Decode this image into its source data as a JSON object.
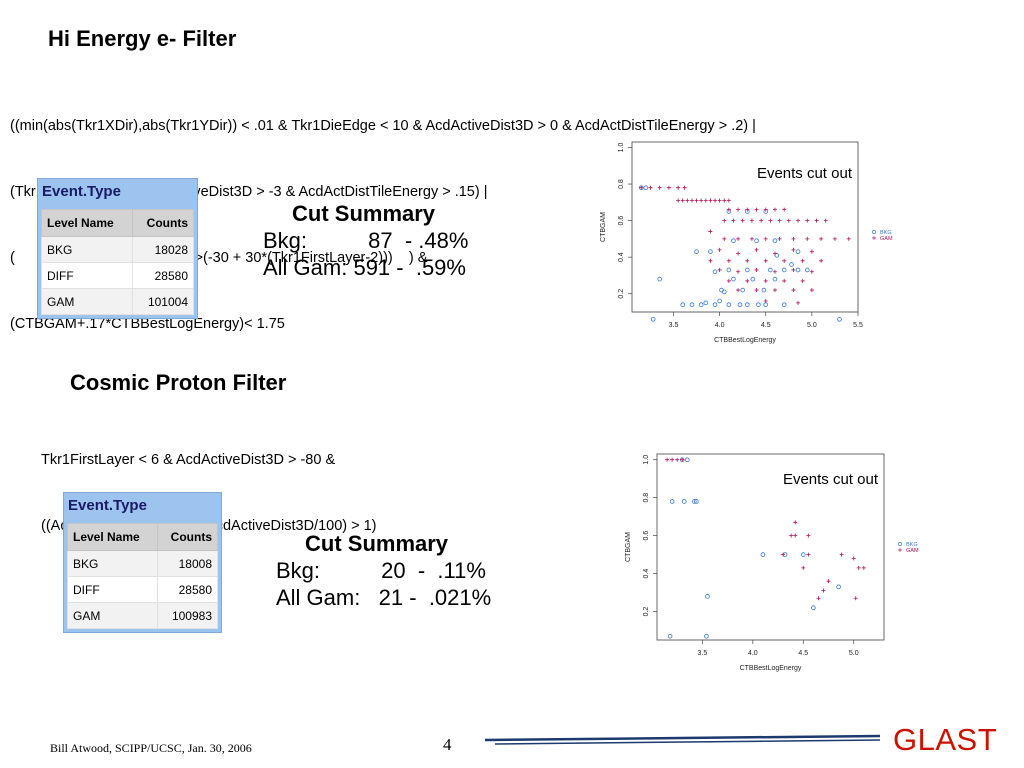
{
  "filter1": {
    "title": "Hi Energy e- Filter",
    "expr_lines": [
      "((min(abs(Tkr1XDir),abs(Tkr1YDir)) < .01 & Tkr1DieEdge < 10 & AcdActiveDist3D > 0 & AcdActDistTileEnergy > .2) |",
      "(Tkr1SSDVeto < 7 & AcdActiveDist3D > -3 & AcdActDistTileEnergy > .15) |",
      "(                 AcdActiveDist3D >(-30 + 30*(Tkr1FirstLayer-2)))    ) &",
      "(CTBGAM+.17*CTBBestLogEnergy)< 1.75"
    ],
    "table": {
      "title": "Event.Type",
      "headers": [
        "Level Name",
        "Counts"
      ],
      "rows": [
        [
          "BKG",
          "18028"
        ],
        [
          "DIFF",
          "28580"
        ],
        [
          "GAM",
          "101004"
        ]
      ]
    },
    "summary": {
      "title": "Cut Summary",
      "lines": [
        "Bkg:          87  - .48%",
        "All Gam: 591 -  .59%"
      ]
    }
  },
  "filter2": {
    "title": "Cosmic Proton Filter",
    "expr_lines": [
      "Tkr1FirstLayer < 6 & AcdActiveDist3D > -80 &",
      "((AcdActDistTileEnergy + AcdActiveDist3D/100) > 1)"
    ],
    "table": {
      "title": "Event.Type",
      "headers": [
        "Level Name",
        "Counts"
      ],
      "rows": [
        [
          "BKG",
          "18008"
        ],
        [
          "DIFF",
          "28580"
        ],
        [
          "GAM",
          "100983"
        ]
      ]
    },
    "summary": {
      "title": "Cut Summary",
      "lines": [
        "Bkg:          20  -  .11%",
        "All Gam:   21 -  .021%"
      ]
    }
  },
  "chart_data": [
    {
      "type": "scatter",
      "title": "",
      "annotation": "Events cut out",
      "xlabel": "CTBBestLogEnergy",
      "ylabel": "CTBGAM",
      "xlim": [
        3.05,
        5.5
      ],
      "ylim": [
        0.1,
        1.03
      ],
      "xticks": [
        "3.5",
        "4.0",
        "4.5",
        "5.0",
        "5.5"
      ],
      "yticks": [
        "0.2",
        "0.4",
        "0.6",
        "0.8",
        "1.0"
      ],
      "legend": [
        "BKG",
        "GAM"
      ],
      "legend_position": "right",
      "colors": {
        "BKG": "#3a7bd5",
        "GAM": "#b0105a"
      },
      "series": [
        {
          "name": "BKG",
          "marker": "circle",
          "points": [
            [
              3.15,
              0.78
            ],
            [
              3.2,
              0.78
            ],
            [
              3.28,
              0.06
            ],
            [
              3.35,
              0.28
            ],
            [
              3.6,
              0.14
            ],
            [
              3.7,
              0.14
            ],
            [
              3.75,
              0.43
            ],
            [
              3.8,
              0.14
            ],
            [
              3.85,
              0.15
            ],
            [
              3.95,
              0.14
            ],
            [
              4.0,
              0.16
            ],
            [
              4.05,
              0.21
            ],
            [
              4.1,
              0.14
            ],
            [
              4.15,
              0.28
            ],
            [
              4.22,
              0.14
            ],
            [
              4.3,
              0.14
            ],
            [
              4.36,
              0.28
            ],
            [
              4.42,
              0.14
            ],
            [
              4.5,
              0.14
            ],
            [
              4.6,
              0.28
            ],
            [
              4.7,
              0.14
            ],
            [
              4.85,
              0.43
            ],
            [
              4.95,
              0.33
            ],
            [
              4.1,
              0.65
            ],
            [
              4.3,
              0.65
            ],
            [
              4.5,
              0.65
            ],
            [
              4.1,
              0.33
            ],
            [
              4.3,
              0.33
            ],
            [
              4.15,
              0.49
            ],
            [
              4.4,
              0.49
            ],
            [
              4.6,
              0.49
            ],
            [
              3.95,
              0.32
            ],
            [
              4.55,
              0.33
            ],
            [
              4.85,
              0.33
            ],
            [
              4.7,
              0.33
            ],
            [
              4.02,
              0.22
            ],
            [
              4.25,
              0.22
            ],
            [
              4.48,
              0.22
            ],
            [
              5.3,
              0.06
            ],
            [
              3.9,
              0.43
            ],
            [
              4.62,
              0.41
            ],
            [
              4.78,
              0.36
            ]
          ]
        },
        {
          "name": "GAM",
          "marker": "plus",
          "points": [
            [
              3.15,
              0.78
            ],
            [
              3.25,
              0.78
            ],
            [
              3.35,
              0.78
            ],
            [
              3.45,
              0.78
            ],
            [
              3.55,
              0.78
            ],
            [
              3.62,
              0.78
            ],
            [
              3.55,
              0.71
            ],
            [
              3.6,
              0.71
            ],
            [
              3.65,
              0.71
            ],
            [
              3.7,
              0.71
            ],
            [
              3.75,
              0.71
            ],
            [
              3.8,
              0.71
            ],
            [
              3.85,
              0.71
            ],
            [
              3.9,
              0.71
            ],
            [
              3.95,
              0.71
            ],
            [
              4.0,
              0.71
            ],
            [
              4.05,
              0.71
            ],
            [
              4.1,
              0.71
            ],
            [
              4.1,
              0.66
            ],
            [
              4.2,
              0.66
            ],
            [
              4.3,
              0.66
            ],
            [
              4.4,
              0.66
            ],
            [
              4.5,
              0.66
            ],
            [
              4.6,
              0.66
            ],
            [
              4.7,
              0.66
            ],
            [
              4.05,
              0.6
            ],
            [
              4.15,
              0.6
            ],
            [
              4.25,
              0.6
            ],
            [
              4.35,
              0.6
            ],
            [
              4.45,
              0.6
            ],
            [
              4.55,
              0.6
            ],
            [
              4.65,
              0.6
            ],
            [
              4.75,
              0.6
            ],
            [
              4.85,
              0.6
            ],
            [
              4.95,
              0.6
            ],
            [
              5.05,
              0.6
            ],
            [
              5.15,
              0.6
            ],
            [
              3.9,
              0.54
            ],
            [
              4.05,
              0.5
            ],
            [
              4.2,
              0.5
            ],
            [
              4.35,
              0.5
            ],
            [
              4.5,
              0.5
            ],
            [
              4.65,
              0.5
            ],
            [
              4.8,
              0.5
            ],
            [
              4.95,
              0.5
            ],
            [
              5.1,
              0.5
            ],
            [
              5.25,
              0.5
            ],
            [
              5.4,
              0.5
            ],
            [
              4.0,
              0.44
            ],
            [
              4.2,
              0.42
            ],
            [
              4.4,
              0.44
            ],
            [
              4.6,
              0.42
            ],
            [
              4.8,
              0.44
            ],
            [
              5.0,
              0.43
            ],
            [
              3.9,
              0.38
            ],
            [
              4.1,
              0.38
            ],
            [
              4.3,
              0.38
            ],
            [
              4.5,
              0.38
            ],
            [
              4.7,
              0.38
            ],
            [
              4.9,
              0.38
            ],
            [
              5.1,
              0.38
            ],
            [
              4.0,
              0.33
            ],
            [
              4.2,
              0.32
            ],
            [
              4.4,
              0.33
            ],
            [
              4.6,
              0.32
            ],
            [
              4.8,
              0.33
            ],
            [
              5.0,
              0.32
            ],
            [
              4.1,
              0.27
            ],
            [
              4.3,
              0.27
            ],
            [
              4.5,
              0.27
            ],
            [
              4.7,
              0.27
            ],
            [
              4.9,
              0.27
            ],
            [
              4.2,
              0.22
            ],
            [
              4.4,
              0.22
            ],
            [
              4.6,
              0.22
            ],
            [
              4.8,
              0.22
            ],
            [
              5.0,
              0.22
            ],
            [
              4.5,
              0.16
            ],
            [
              4.85,
              0.15
            ]
          ]
        }
      ]
    },
    {
      "type": "scatter",
      "title": "",
      "annotation": "Events cut out",
      "xlabel": "CTBBestLogEnergy",
      "ylabel": "CTBGAM",
      "xlim": [
        3.05,
        5.3
      ],
      "ylim": [
        0.05,
        1.03
      ],
      "xticks": [
        "3.5",
        "4.0",
        "4.5",
        "5.0"
      ],
      "yticks": [
        "0.2",
        "0.4",
        "0.6",
        "0.8",
        "1.0"
      ],
      "legend": [
        "BKG",
        "GAM"
      ],
      "legend_position": "right",
      "colors": {
        "BKG": "#3a7bd5",
        "GAM": "#b0105a"
      },
      "series": [
        {
          "name": "BKG",
          "marker": "circle",
          "points": [
            [
              3.3,
              1.0
            ],
            [
              3.35,
              1.0
            ],
            [
              3.2,
              0.78
            ],
            [
              3.32,
              0.78
            ],
            [
              3.42,
              0.78
            ],
            [
              3.44,
              0.78
            ],
            [
              3.55,
              0.28
            ],
            [
              3.18,
              0.07
            ],
            [
              3.54,
              0.07
            ],
            [
              4.1,
              0.5
            ],
            [
              4.32,
              0.5
            ],
            [
              4.5,
              0.5
            ],
            [
              4.85,
              0.33
            ],
            [
              4.6,
              0.22
            ]
          ]
        },
        {
          "name": "GAM",
          "marker": "plus",
          "points": [
            [
              3.15,
              1.0
            ],
            [
              3.2,
              1.0
            ],
            [
              3.25,
              1.0
            ],
            [
              3.3,
              1.0
            ],
            [
              4.42,
              0.67
            ],
            [
              4.38,
              0.6
            ],
            [
              4.42,
              0.6
            ],
            [
              4.55,
              0.6
            ],
            [
              4.3,
              0.5
            ],
            [
              4.55,
              0.5
            ],
            [
              4.88,
              0.5
            ],
            [
              5.0,
              0.48
            ],
            [
              4.5,
              0.43
            ],
            [
              5.05,
              0.43
            ],
            [
              5.1,
              0.43
            ],
            [
              4.75,
              0.36
            ],
            [
              4.7,
              0.31
            ],
            [
              5.02,
              0.27
            ],
            [
              4.65,
              0.27
            ]
          ]
        }
      ]
    }
  ],
  "footer": {
    "author": "Bill Atwood,  SCIPP/UCSC, Jan. 30, 2006",
    "page": "4",
    "logo": "GLAST"
  }
}
